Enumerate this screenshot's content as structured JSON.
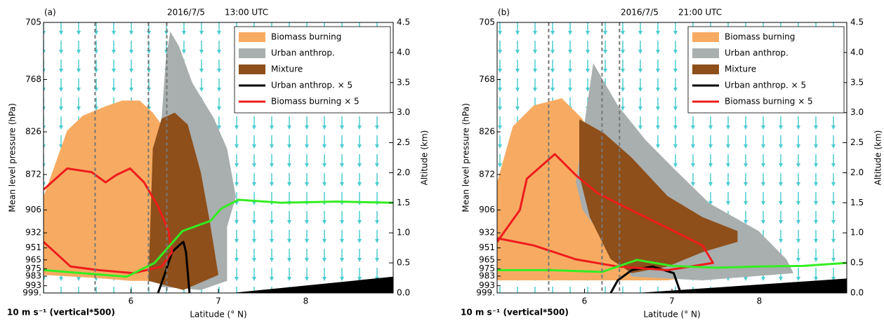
{
  "chart_data": [
    {
      "type": "cross-section",
      "panel_label": "(a)",
      "date": "2016/7/5",
      "time": "13:00 UTC",
      "xlabel": "Latitude (° N)",
      "ylabel": "Mean level pressure (hPa)",
      "y2label": "Altitude (km)",
      "note": "10 m s⁻¹ (vertical*500)",
      "legend": "upper right",
      "xlim": [
        5.0,
        9.0
      ],
      "xticks": [
        6,
        7,
        8
      ],
      "y2lim": [
        0,
        4.5
      ],
      "y2ticks": [
        {
          "value": 0,
          "label": "0.0"
        },
        {
          "value": 0.5,
          "label": "0.5"
        },
        {
          "value": 1,
          "label": "1.0"
        },
        {
          "value": 1.5,
          "label": "1.5"
        },
        {
          "value": 2,
          "label": "2.0"
        },
        {
          "value": 2.5,
          "label": "2.5"
        },
        {
          "value": 3,
          "label": "3.0"
        },
        {
          "value": 3.5,
          "label": "3.5"
        },
        {
          "value": 4,
          "label": "4.0"
        },
        {
          "value": 4.5,
          "label": "4.5"
        }
      ],
      "yticks": [
        {
          "value": 4.5,
          "label": "705"
        },
        {
          "value": 3.55,
          "label": "768"
        },
        {
          "value": 2.68,
          "label": "826"
        },
        {
          "value": 1.97,
          "label": "872"
        },
        {
          "value": 1.38,
          "label": "906"
        },
        {
          "value": 1.0,
          "label": "932"
        },
        {
          "value": 0.75,
          "label": "951"
        },
        {
          "value": 0.55,
          "label": "965"
        },
        {
          "value": 0.4,
          "label": "975"
        },
        {
          "value": 0.28,
          "label": "983"
        },
        {
          "value": 0.12,
          "label": "993"
        },
        {
          "value": 0,
          "label": "999."
        }
      ],
      "dashed_x": [
        5.59,
        6.2,
        6.41
      ],
      "series": [
        {
          "name": "Biomass burning",
          "kind": "area",
          "color": "#f7ab62",
          "x": [
            5.0,
            5.0,
            5.27,
            5.45,
            5.7,
            5.9,
            6.1,
            6.25,
            6.35,
            6.5,
            6.6,
            6.6,
            6.4,
            6.0,
            5.6
          ],
          "y": [
            0.3,
            1.6,
            2.7,
            2.95,
            3.1,
            3.2,
            3.2,
            3.0,
            2.8,
            2.4,
            1.5,
            0.5,
            0.2,
            0.2,
            0.25
          ]
        },
        {
          "name": "Urban anthrop.",
          "kind": "area",
          "color": "#a9aeae",
          "x": [
            6.35,
            6.33,
            6.4,
            6.45,
            6.55,
            6.7,
            6.95,
            7.1,
            7.2,
            7.1,
            7.1,
            6.8
          ],
          "y": [
            0.1,
            2.5,
            3.9,
            4.35,
            4.1,
            3.5,
            2.9,
            2.4,
            1.6,
            1.1,
            0.2,
            0.05
          ]
        },
        {
          "name": "Mixture",
          "kind": "area",
          "color": "#8e4f1a",
          "x": [
            6.2,
            6.25,
            6.35,
            6.5,
            6.65,
            6.8,
            6.9,
            7.0,
            6.6
          ],
          "y": [
            0.2,
            2.4,
            2.9,
            3.0,
            2.8,
            2.0,
            1.2,
            0.3,
            0.05
          ]
        },
        {
          "name": "Urban anthrop. × 5",
          "kind": "line",
          "color": "#000000",
          "x": [
            6.31,
            6.39,
            6.47,
            6.55,
            6.6,
            6.63,
            6.67
          ],
          "y": [
            0,
            0.33,
            0.68,
            0.79,
            0.85,
            0.68,
            0
          ]
        },
        {
          "name": "Biomass burning × 5",
          "kind": "line",
          "color": "#ee1c1c",
          "x": [
            5.0,
            5.27,
            5.55,
            5.71,
            5.83,
            5.99,
            6.15,
            6.31,
            6.43,
            6.47,
            6.35,
            6.03,
            5.63,
            5.31,
            5.0
          ],
          "y": [
            1.72,
            2.07,
            2.01,
            1.84,
            1.96,
            2.07,
            1.84,
            1.44,
            1.03,
            0.68,
            0.44,
            0.33,
            0.38,
            0.44,
            0.85
          ]
        },
        {
          "kind": "line",
          "color": "#33ee22",
          "x": [
            5.0,
            5.95,
            6.27,
            6.59,
            6.91,
            7.03,
            7.23,
            7.72,
            8.36,
            9.0
          ],
          "y": [
            0.38,
            0.27,
            0.5,
            1.03,
            1.2,
            1.4,
            1.55,
            1.5,
            1.52,
            1.5
          ]
        },
        {
          "kind": "area",
          "color": "#000000",
          "x": [
            7.15,
            9.0,
            9.0
          ],
          "y": [
            0,
            0.27,
            0
          ]
        }
      ]
    },
    {
      "type": "cross-section",
      "panel_label": "(b)",
      "date": "2016/7/5",
      "time": "21:00 UTC",
      "xlabel": "Latitude (° N)",
      "ylabel": "Mean level pressure (hPa)",
      "y2label": "Altitude (km)",
      "note": "10 m s⁻¹ (vertical*500)",
      "legend": "upper right",
      "xlim": [
        5.0,
        9.0
      ],
      "xticks": [
        6,
        7,
        8
      ],
      "y2lim": [
        0,
        4.5
      ],
      "y2ticks": [
        {
          "value": 0,
          "label": "0.0"
        },
        {
          "value": 0.5,
          "label": "0.5"
        },
        {
          "value": 1,
          "label": "1.0"
        },
        {
          "value": 1.5,
          "label": "1.5"
        },
        {
          "value": 2,
          "label": "2.0"
        },
        {
          "value": 2.5,
          "label": "2.5"
        },
        {
          "value": 3,
          "label": "3.0"
        },
        {
          "value": 3.5,
          "label": "3.5"
        },
        {
          "value": 4,
          "label": "4.0"
        },
        {
          "value": 4.5,
          "label": "4.5"
        }
      ],
      "yticks": [
        {
          "value": 4.5,
          "label": "705"
        },
        {
          "value": 3.55,
          "label": "768"
        },
        {
          "value": 2.68,
          "label": "826"
        },
        {
          "value": 1.97,
          "label": "872"
        },
        {
          "value": 1.38,
          "label": "906"
        },
        {
          "value": 1.0,
          "label": "932"
        },
        {
          "value": 0.75,
          "label": "951"
        },
        {
          "value": 0.55,
          "label": "965"
        },
        {
          "value": 0.4,
          "label": "975"
        },
        {
          "value": 0.28,
          "label": "983"
        },
        {
          "value": 0.12,
          "label": "993"
        },
        {
          "value": 0,
          "label": "999."
        }
      ],
      "dashed_x": [
        5.59,
        6.2,
        6.4
      ],
      "series": [
        {
          "name": "Biomass burning",
          "kind": "area",
          "color": "#f7ab62",
          "x": [
            5.0,
            5.0,
            5.18,
            5.42,
            5.74,
            5.98,
            6.14,
            6.54,
            6.95,
            7.35,
            7.51,
            6.95,
            5.74
          ],
          "y": [
            0.21,
            1.84,
            2.77,
            3.12,
            3.24,
            2.89,
            2.07,
            1.61,
            1.03,
            0.56,
            0.33,
            0.21,
            0.21
          ]
        },
        {
          "name": "Urban anthrop.",
          "kind": "area",
          "color": "#a9aeae",
          "x": [
            5.9,
            6.1,
            6.38,
            6.7,
            7.02,
            7.43,
            7.99,
            8.31,
            8.39,
            7.35,
            6.54,
            5.98
          ],
          "y": [
            1.84,
            3.82,
            3.12,
            2.54,
            2.07,
            1.49,
            1.03,
            0.56,
            0.33,
            0.21,
            0.27,
            1.38
          ]
        },
        {
          "name": "Mixture",
          "kind": "area",
          "color": "#8e4f1a",
          "x": [
            5.94,
            6.22,
            6.54,
            6.95,
            7.35,
            7.75,
            7.75,
            7.35,
            6.95,
            6.54,
            6.3,
            6.06,
            5.94
          ],
          "y": [
            2.89,
            2.66,
            2.25,
            1.61,
            1.26,
            1.03,
            0.85,
            0.68,
            0.44,
            0.33,
            0.56,
            1.26,
            1.96
          ]
        },
        {
          "name": "Urban anthrop. × 5",
          "kind": "line",
          "color": "#000000",
          "x": [
            6.3,
            6.38,
            6.54,
            6.78,
            7.02,
            7.1
          ],
          "y": [
            0,
            0.21,
            0.38,
            0.44,
            0.33,
            0
          ]
        },
        {
          "name": "Biomass burning × 5",
          "kind": "line",
          "color": "#ee1c1c",
          "x": [
            5.0,
            5.26,
            5.34,
            5.66,
            5.9,
            6.14,
            6.38,
            6.7,
            7.02,
            7.35,
            7.47,
            6.95,
            6.38,
            5.9,
            5.42,
            5.0
          ],
          "y": [
            0.85,
            1.38,
            1.9,
            2.31,
            1.96,
            1.67,
            1.49,
            1.26,
            1.03,
            0.79,
            0.5,
            0.38,
            0.44,
            0.56,
            0.79,
            0.91
          ]
        },
        {
          "kind": "line",
          "color": "#33ee22",
          "x": [
            5.0,
            5.6,
            6.2,
            6.6,
            7.0,
            7.5,
            8.0,
            8.5,
            9.0
          ],
          "y": [
            0.38,
            0.38,
            0.35,
            0.55,
            0.45,
            0.42,
            0.44,
            0.45,
            0.5
          ]
        },
        {
          "kind": "area",
          "color": "#000000",
          "x": [
            6.6,
            9.0,
            9.0
          ],
          "y": [
            0,
            0.24,
            0
          ]
        }
      ]
    }
  ]
}
